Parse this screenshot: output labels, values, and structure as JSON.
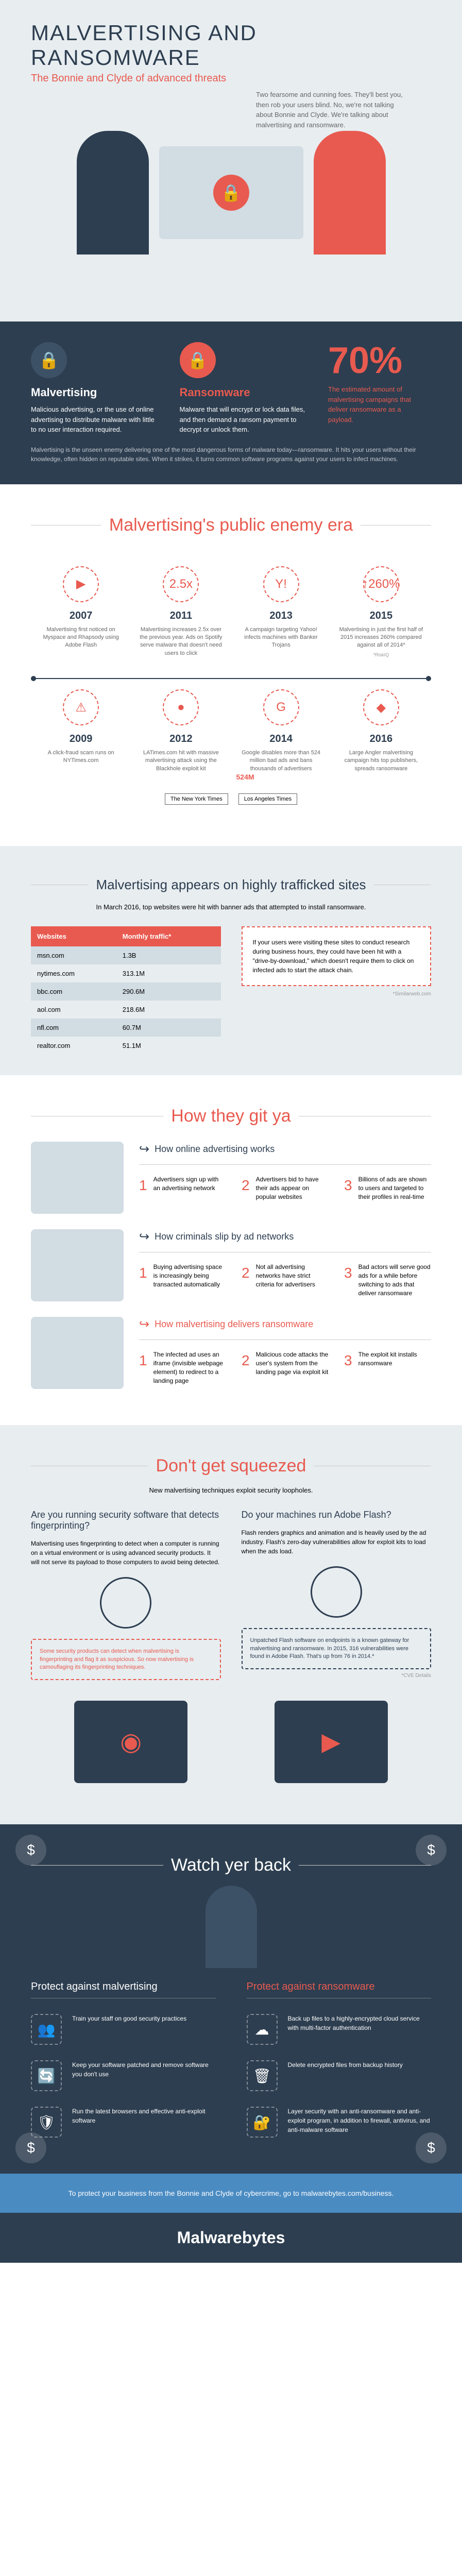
{
  "header": {
    "title": "MALVERTISING AND RANSOMWARE",
    "subtitle": "The Bonnie and Clyde of advanced threats",
    "intro": "Two fearsome and cunning foes. They'll best you, then rob your users blind. No, we're not talking about Bonnie and Clyde. We're talking about malvertising and ransomware.",
    "bg_color": "#e8edf0",
    "title_color": "#2d3e50"
  },
  "definitions": {
    "bg_color": "#2d3e50",
    "text_color": "#ffffff",
    "accent_color": "#e85a4f",
    "malvertising": {
      "title": "Malvertising",
      "icon": "🔒",
      "desc": "Malicious advertising, or the use of online advertising to distribute malware with little to no user interaction required."
    },
    "ransomware": {
      "title": "Ransomware",
      "icon": "🔒",
      "desc": "Malware that will encrypt or lock data files, and then demand a ransom payment to decrypt or unlock them."
    },
    "stat_pct": "70%",
    "stat_caption": "The estimated amount of malvertising campaigns that deliver ransomware as a payload.",
    "note": "Malvertising is the unseen enemy delivering one of the most dangerous forms of malware today—ransomware. It hits your users without their knowledge, often hidden on reputable sites. When it strikes, it turns common software programs against your users to infect machines."
  },
  "timeline": {
    "title": "Malvertising's public enemy era",
    "bg_color": "#ffffff",
    "accent_color": "#e85a4f",
    "top_items": [
      {
        "year": "2007",
        "icon": "▶",
        "desc": "Malvertising first noticed on Myspace and Rhapsody using Adobe Flash"
      },
      {
        "year": "2011",
        "icon": "2.5x",
        "desc": "Malvertising increases 2.5x over the previous year. Ads on Spotify serve malware that doesn't need users to click"
      },
      {
        "year": "2013",
        "icon": "Y!",
        "desc": "A campaign targeting Yahoo! infects machines with Banker Trojans"
      },
      {
        "year": "2015",
        "icon": "↑260%",
        "desc": "Malvertising in just the first half of 2015 increases 260% compared against all of 2014*",
        "cite": "*RiskIQ"
      }
    ],
    "bottom_items": [
      {
        "year": "2009",
        "icon": "⚠",
        "desc": "A click-fraud scam runs on NYTimes.com"
      },
      {
        "year": "2012",
        "icon": "●",
        "desc": "LATimes.com hit with massive malvertising attack using the Blackhole exploit kit"
      },
      {
        "year": "2014",
        "icon": "G",
        "desc": "Google disables more than 524 million bad ads and bans thousands of advertisers",
        "stat": "524M"
      },
      {
        "year": "2016",
        "icon": "◆",
        "desc": "Large Angler malvertising campaign hits top publishers, spreads ransomware"
      }
    ],
    "news_logos": [
      "The New York Times",
      "Los Angeles Times"
    ]
  },
  "trafficked": {
    "title": "Malvertising appears on highly trafficked sites",
    "intro": "In March 2016, top websites were hit with banner ads that attempted to install ransomware.",
    "bg_color": "#e8edf0",
    "table": {
      "headers": [
        "Websites",
        "Monthly traffic*"
      ],
      "header_bg": "#e85a4f",
      "rows": [
        [
          "msn.com",
          "1.3B"
        ],
        [
          "nytimes.com",
          "313.1M"
        ],
        [
          "bbc.com",
          "290.6M"
        ],
        [
          "aol.com",
          "218.6M"
        ],
        [
          "nfl.com",
          "60.7M"
        ],
        [
          "realtor.com",
          "51.1M"
        ]
      ]
    },
    "callout": "If your users were visiting these sites to conduct research during business hours, they could have been hit with a \"drive-by-download,\" which doesn't require them to click on infected ads to start the attack chain.",
    "cite": "*Similarweb.com"
  },
  "howgit": {
    "title": "How they git ya",
    "bg_color": "#ffffff",
    "sections": [
      {
        "heading": "How online advertising works",
        "color": "#2d3e50",
        "steps": [
          {
            "n": "1",
            "text": "Advertisers sign up with an advertising network"
          },
          {
            "n": "2",
            "text": "Advertisers bid to have their ads appear on popular websites"
          },
          {
            "n": "3",
            "text": "Billions of ads are shown to users and targeted to their profiles in real-time"
          }
        ]
      },
      {
        "heading": "How criminals slip by ad networks",
        "color": "#2d3e50",
        "steps": [
          {
            "n": "1",
            "text": "Buying advertising space is increasingly being transacted automatically"
          },
          {
            "n": "2",
            "text": "Not all advertising networks have strict criteria for advertisers"
          },
          {
            "n": "3",
            "text": "Bad actors will serve good ads for a while before switching to ads that deliver ransomware"
          }
        ]
      },
      {
        "heading": "How malvertising delivers ransomware",
        "color": "#e85a4f",
        "steps": [
          {
            "n": "1",
            "text": "The infected ad uses an iframe (invisible webpage element) to redirect to a landing page"
          },
          {
            "n": "2",
            "text": "Malicious code attacks the user's system from the landing page via exploit kit"
          },
          {
            "n": "3",
            "text": "The exploit kit installs ransomware"
          }
        ]
      }
    ]
  },
  "squeeze": {
    "title": "Don't get squeezed",
    "subtitle": "New malvertising techniques exploit security loopholes.",
    "bg_color": "#e8edf0",
    "cols": [
      {
        "heading": "Are you running security software that detects fingerprinting?",
        "desc": "Malvertising uses fingerprinting to detect when a computer is running on a virtual environment or is using advanced security products. It will not serve its payload to those computers to avoid being detected.",
        "callout": "Some security products can detect when malvertising is fingerprinting and flag it as suspicious. So now malvertising is camouflaging its fingerprinting techniques.",
        "callout_color": "#e85a4f"
      },
      {
        "heading": "Do your machines run Adobe Flash?",
        "desc": "Flash renders graphics and animation and is heavily used by the ad industry. Flash's zero-day vulnerabilities allow for exploit kits to load when the ads load.",
        "callout": "Unpatched Flash software on endpoints is a known gateway for malvertising and ransomware. In 2015, 316 vulnerabilities were found in Adobe Flash. That's up from 76 in 2014.*",
        "callout_color": "#2d3e50",
        "cite": "*CVE Details"
      }
    ]
  },
  "watch": {
    "title": "Watch yer back",
    "bg_color": "#2d3e50",
    "text_color": "#ffffff",
    "cols": [
      {
        "heading": "Protect against malvertising",
        "items": [
          {
            "icon": "👥",
            "text": "Train your staff on good security practices"
          },
          {
            "icon": "🔄",
            "text": "Keep your software patched and remove software you don't use"
          },
          {
            "icon": "🛡",
            "text": "Run the latest browsers and effective anti-exploit software"
          }
        ]
      },
      {
        "heading": "Protect against ransomware",
        "items": [
          {
            "icon": "☁",
            "text": "Back up files to a highly-encrypted cloud service with multi-factor authentication"
          },
          {
            "icon": "🗑",
            "text": "Delete encrypted files from backup history"
          },
          {
            "icon": "🔐",
            "text": "Layer security with an anti-ransomware and anti-exploit program, in addition to firewall, antivirus, and anti-malware software"
          }
        ]
      }
    ]
  },
  "footer": {
    "cta": "To protect your business from the Bonnie and Clyde of cybercrime, go to malwarebytes.com/business.",
    "cta_bg": "#4a8bc2",
    "logo": "Malwarebytes",
    "logo_bg": "#2d3e50"
  }
}
